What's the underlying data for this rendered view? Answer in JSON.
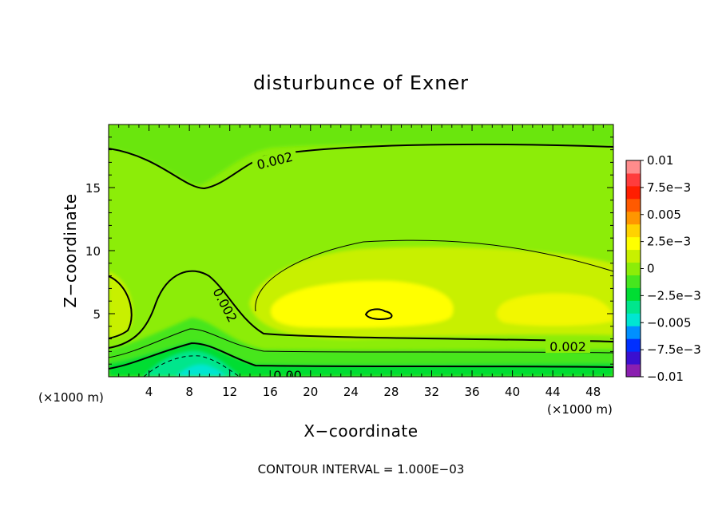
{
  "chart_data": {
    "type": "heatmap",
    "title": "disturbunce of Exner",
    "xlabel": "X−coordinate",
    "ylabel": "Z−coordinate",
    "x_unit_left": "(×1000 m)",
    "x_unit_right": "(×1000 m)",
    "xlim": [
      0,
      50
    ],
    "ylim": [
      0,
      20
    ],
    "x_ticks": [
      4,
      8,
      12,
      16,
      20,
      24,
      28,
      32,
      36,
      40,
      44,
      48
    ],
    "y_ticks": [
      5,
      10,
      15
    ],
    "x_tick_labels": [
      "4",
      "8",
      "12",
      "16",
      "20",
      "24",
      "28",
      "32",
      "36",
      "40",
      "44",
      "48"
    ],
    "y_tick_labels": [
      "5",
      "10",
      "15"
    ],
    "colorbar": {
      "min": -0.01,
      "max": 0.01,
      "tick_labels": [
        "0.01",
        "7.5e−3",
        "0.005",
        "2.5e−3",
        "0",
        "−2.5e−3",
        "−0.005",
        "−7.5e−3",
        "−0.01"
      ],
      "colors": [
        "#8a1fb0",
        "#3a0fd0",
        "#0030ff",
        "#0090ff",
        "#00e6d2",
        "#00e68c",
        "#00dd33",
        "#46e61e",
        "#8ced08",
        "#c8f000",
        "#ffff00",
        "#ffd200",
        "#ff9600",
        "#ff5a00",
        "#ff1e00",
        "#ff3c3c",
        "#ff8c8c"
      ]
    },
    "contour_labels": [
      "0.002",
      "0.002",
      "0.002",
      "0.00"
    ],
    "footer": "CONTOUR INTERVAL = 1.000E−03",
    "grid": false
  }
}
